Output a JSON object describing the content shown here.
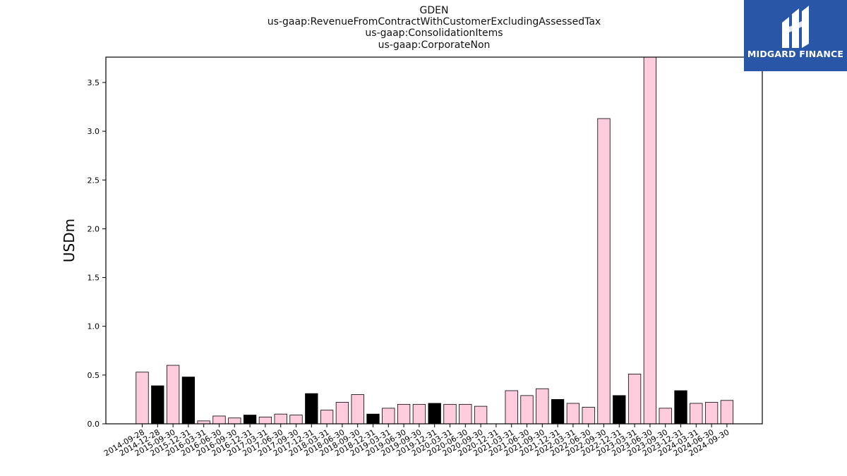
{
  "title_lines": [
    "GDEN",
    "us-gaap:RevenueFromContractWithCustomerExcludingAssessedTax",
    "us-gaap:ConsolidationItems",
    "us-gaap:CorporateNon"
  ],
  "logo": {
    "text": "MIDGARD FINANCE",
    "color": "#2a56a8"
  },
  "colors": {
    "quarter": "#ffccdd",
    "annual": "#000000",
    "edge": "#000000"
  },
  "chart_data": {
    "type": "bar",
    "ylabel": "USDm",
    "xlabel": "",
    "ylim": [
      0,
      3.76
    ],
    "yticks": [
      0.0,
      0.5,
      1.0,
      1.5,
      2.0,
      2.5,
      3.0,
      3.5
    ],
    "grid": false,
    "categories": [
      "2014-09-28",
      "2014-12-28",
      "2015-09-30",
      "2015-12-31",
      "2016-03-31",
      "2016-06-30",
      "2016-09-30",
      "2016-12-31",
      "2017-03-31",
      "2017-06-30",
      "2017-09-30",
      "2017-12-31",
      "2018-03-31",
      "2018-06-30",
      "2018-09-30",
      "2018-12-31",
      "2019-03-31",
      "2019-06-30",
      "2019-09-30",
      "2019-12-31",
      "2020-03-31",
      "2020-06-30",
      "2020-09-30",
      "2020-12-31",
      "2021-03-31",
      "2021-06-30",
      "2021-09-30",
      "2021-12-31",
      "2022-03-31",
      "2022-06-30",
      "2022-09-30",
      "2022-12-31",
      "2023-03-31",
      "2023-06-30",
      "2023-09-30",
      "2023-12-31",
      "2024-03-31",
      "2024-06-30",
      "2024-09-30"
    ],
    "values": [
      0.53,
      0.39,
      0.6,
      0.48,
      0.03,
      0.08,
      0.06,
      0.09,
      0.07,
      0.1,
      0.09,
      0.31,
      0.14,
      0.22,
      0.3,
      0.1,
      0.16,
      0.2,
      0.2,
      0.21,
      0.2,
      0.2,
      0.18,
      0.0,
      0.34,
      0.29,
      0.36,
      0.25,
      0.21,
      0.17,
      3.13,
      0.29,
      0.51,
      3.76,
      0.16,
      0.34,
      0.21,
      0.22,
      0.24
    ],
    "annual_flags": [
      false,
      true,
      false,
      true,
      false,
      false,
      false,
      true,
      false,
      false,
      false,
      true,
      false,
      false,
      false,
      true,
      false,
      false,
      false,
      true,
      false,
      false,
      false,
      false,
      false,
      false,
      false,
      true,
      false,
      false,
      false,
      true,
      false,
      false,
      false,
      true,
      false,
      false,
      false
    ]
  }
}
